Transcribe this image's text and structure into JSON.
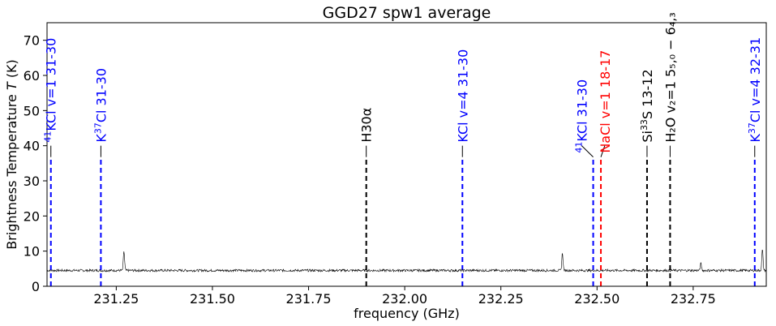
{
  "chart_data": {
    "type": "line",
    "title": "GGD27 spw1 average",
    "xlabel": "frequency (GHz)",
    "ylabel": "Brightness Temperature T (K)",
    "xlim": [
      231.07,
      232.94
    ],
    "ylim": [
      0,
      75
    ],
    "xticks": [
      231.25,
      231.5,
      231.75,
      232.0,
      232.25,
      232.5,
      232.75
    ],
    "xtick_labels": [
      "231.25",
      "231.50",
      "231.75",
      "232.00",
      "232.25",
      "232.50",
      "232.75"
    ],
    "yticks": [
      0,
      10,
      20,
      30,
      40,
      50,
      60,
      70
    ],
    "ytick_labels": [
      "0",
      "10",
      "20",
      "30",
      "40",
      "50",
      "60",
      "70"
    ],
    "colors": {
      "kcl": "#0000ff",
      "nacl": "#ff0000",
      "other": "#000000",
      "spectrum": "#000000"
    },
    "spectrum": {
      "name": "spw1 average",
      "baseline": 4.5,
      "noise": 0.35,
      "peaks": [
        {
          "x": 231.27,
          "height": 10.0
        },
        {
          "x": 232.41,
          "height": 9.5
        },
        {
          "x": 232.77,
          "height": 6.5
        },
        {
          "x": 232.93,
          "height": 10.5
        }
      ]
    },
    "line_markers": [
      {
        "name": "41KCl v=1 31-30",
        "iso": "41",
        "main": "KCl v=1 31-30",
        "x": 231.08,
        "color_key": "kcl",
        "label_x": 231.08,
        "label_y": 40
      },
      {
        "name": "K37Cl 31-30",
        "pre": "K",
        "iso": "37",
        "main": "Cl 31-30",
        "x": 231.21,
        "color_key": "kcl",
        "label_x": 231.21,
        "label_y": 40
      },
      {
        "name": "H30alpha",
        "main": "H30α",
        "x": 231.9,
        "color_key": "other",
        "label_x": 231.9,
        "label_y": 40
      },
      {
        "name": "KCl v=4 31-30",
        "main": "KCl v=4 31-30",
        "x": 232.15,
        "color_key": "kcl",
        "label_x": 232.15,
        "label_y": 40
      },
      {
        "name": "41KCl 31-30",
        "iso": "41",
        "main": "KCl 31-30",
        "x": 232.49,
        "color_key": "kcl",
        "label_x": 232.46,
        "label_y": 37
      },
      {
        "name": "NaCl v=1 18-17",
        "main": "NaCl v=1 18-17",
        "x": 232.51,
        "color_key": "nacl",
        "label_x": 232.52,
        "label_y": 37
      },
      {
        "name": "Si33S 13-12",
        "pre": "Si",
        "iso": "33",
        "main": "S 13-12",
        "x": 232.63,
        "color_key": "other",
        "label_x": 232.63,
        "label_y": 40
      },
      {
        "name": "H2O v2=1 5(5,0)-6(4,3)",
        "main": "H₂O v₂=1 5₅,₀ − 6₄,₃",
        "x": 232.69,
        "color_key": "other",
        "label_x": 232.69,
        "label_y": 40
      },
      {
        "name": "K37Cl v=4 32-31",
        "pre": "K",
        "iso": "37",
        "main": "Cl v=4 32-31",
        "x": 232.91,
        "color_key": "kcl",
        "label_x": 232.91,
        "label_y": 40
      }
    ]
  }
}
